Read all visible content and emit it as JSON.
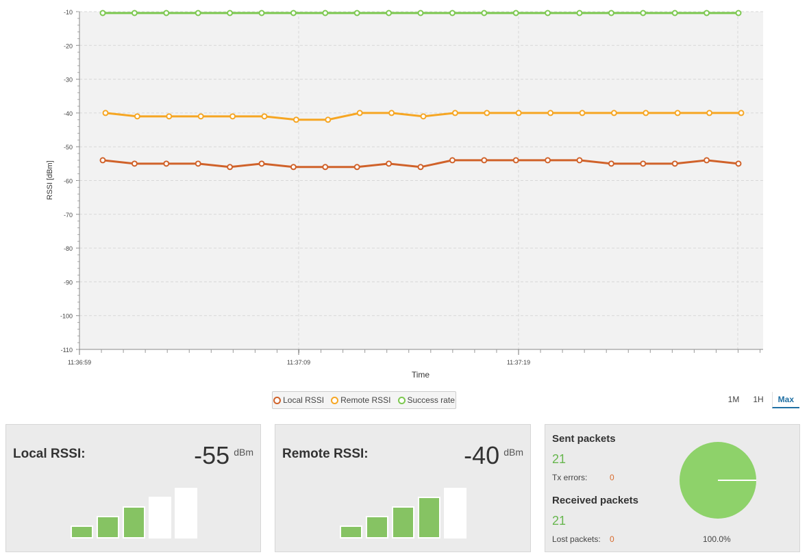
{
  "chart_data": {
    "type": "line",
    "xlabel": "Time",
    "ylabel": "RSSI [dBm]",
    "ylim": [
      -110,
      -10
    ],
    "yticks": [
      -10,
      -20,
      -30,
      -40,
      -50,
      -60,
      -70,
      -80,
      -90,
      -100,
      -110
    ],
    "x_tick_labels": [
      "11:36:59",
      "11:37:09",
      "11:37:19"
    ],
    "grid": true,
    "series": [
      {
        "name": "Local RSSI",
        "color": "#d0622a",
        "values": [
          -54,
          -55,
          -55,
          -55,
          -56,
          -55,
          -56,
          -56,
          -56,
          -55,
          -56,
          -54,
          -54,
          -54,
          -54,
          -54,
          -55,
          -55,
          -55,
          -54,
          -55
        ]
      },
      {
        "name": "Remote RSSI",
        "color": "#f6a623",
        "values": [
          -40,
          -41,
          -41,
          -41,
          -41,
          -41,
          -42,
          -42,
          -40,
          -40,
          -41,
          -40,
          -40,
          -40,
          -40,
          -40,
          -40,
          -40,
          -40,
          -40,
          -40
        ]
      },
      {
        "name": "Success rate",
        "color": "#7cc84f",
        "values": [
          -10,
          -10,
          -10,
          -10,
          -10,
          -10,
          -10,
          -10,
          -10,
          -10,
          -10,
          -10,
          -10,
          -10,
          -10,
          -10,
          -10,
          -10,
          -10,
          -10,
          -10
        ]
      }
    ]
  },
  "legend": {
    "local": "Local RSSI",
    "remote": "Remote RSSI",
    "success": "Success rate"
  },
  "range_buttons": {
    "one_minute": "1M",
    "one_hour": "1H",
    "max": "Max",
    "selected": "Max"
  },
  "local_panel": {
    "title": "Local RSSI:",
    "value": "-55",
    "unit": "dBm",
    "signal_level": 3,
    "signal_total": 5
  },
  "remote_panel": {
    "title": "Remote RSSI:",
    "value": "-40",
    "unit": "dBm",
    "signal_level": 4,
    "signal_total": 5
  },
  "packets_panel": {
    "sent_title": "Sent packets",
    "sent_value": "21",
    "tx_errors_label": "Tx errors:",
    "tx_errors_value": "0",
    "received_title": "Received packets",
    "received_value": "21",
    "lost_label": "Lost packets:",
    "lost_value": "0",
    "success_percent": "100.0%",
    "success_fraction": 1.0
  },
  "colors": {
    "local": "#d0622a",
    "remote": "#f6a623",
    "success": "#7cc84f",
    "bar_on": "#86c363",
    "pie": "#8ed26a"
  }
}
